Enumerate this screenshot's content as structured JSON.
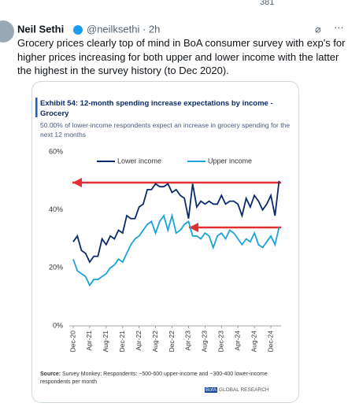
{
  "tweet": {
    "views": "381",
    "name": "Neil Sethi",
    "handle_time": "@neilksethi · 2h",
    "text": "Grocery prices clearly top of mind in BoA consumer survey with exp's for higher prices increasing for both upper and lower income with the latter the highest in the survey history (to Dec 2020)."
  },
  "chart_data": {
    "type": "line",
    "title": "Exhibit 54: 12-month spending increase expectations by income - Grocery",
    "subtitle": "50.00% of lower-income respondents expect an increase in grocery spending for the next 12 months",
    "source_label": "Source:",
    "source_text": "Survey Monkey; Respondents: ~500-600 upper-income and ~300-400 lower-income respondents per month",
    "footer_brand": "BofA",
    "footer_text": "GLOBAL RESEARCH",
    "categories": [
      "Dec-20",
      null,
      null,
      null,
      "Apr-21",
      null,
      null,
      null,
      "Aug-21",
      null,
      null,
      null,
      "Dec-21",
      null,
      null,
      null,
      "Apr-22",
      null,
      null,
      null,
      "Aug-22",
      null,
      null,
      null,
      "Dec-22",
      null,
      null,
      null,
      "Apr-23",
      null,
      null,
      null,
      "Aug-23",
      null,
      null,
      null,
      "Dec-23",
      null,
      null,
      null,
      "Apr-24",
      null,
      null,
      null,
      "Aug-24",
      null,
      null,
      null,
      "Dec-24",
      null,
      null
    ],
    "series": [
      {
        "name": "Lower income",
        "color": "#0b2a6b",
        "values": [
          29,
          31,
          26,
          25,
          22,
          24,
          24,
          30,
          28,
          31,
          30,
          33,
          32,
          38,
          37,
          37,
          41,
          42,
          47,
          47,
          49,
          48,
          48,
          49,
          46,
          47,
          45,
          44,
          37,
          49,
          41,
          43,
          42,
          43,
          42,
          42,
          45,
          42,
          43,
          43,
          42,
          38,
          44,
          41,
          45,
          43,
          40,
          42,
          45,
          38,
          50
        ]
      },
      {
        "name": "Upper income",
        "color": "#1aa3d9",
        "values": [
          23,
          19,
          18,
          17,
          14,
          16,
          16,
          17,
          18,
          20,
          21,
          23,
          22,
          25,
          28,
          30,
          31,
          33,
          35,
          36,
          32,
          36,
          38,
          33,
          38,
          32,
          33,
          35,
          36,
          31,
          31,
          30,
          32,
          31,
          27,
          31,
          32,
          30,
          33,
          32,
          30,
          28,
          30,
          29,
          32,
          28,
          27,
          29,
          31,
          28,
          34
        ]
      }
    ],
    "ylim": [
      0,
      60
    ],
    "yticks": [
      {
        "value": 0,
        "label": "0%"
      },
      {
        "value": 20,
        "label": "20%"
      },
      {
        "value": 40,
        "label": "40%"
      },
      {
        "value": 60,
        "label": "60%"
      }
    ],
    "grid": false
  }
}
